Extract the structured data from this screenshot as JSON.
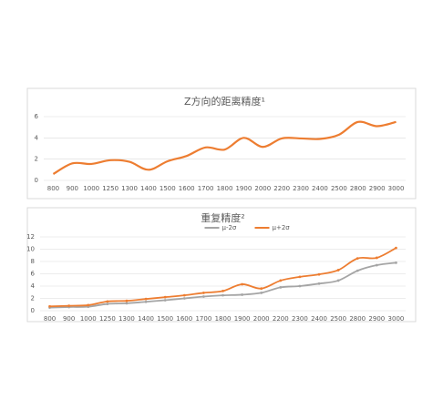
{
  "chart_data": [
    {
      "type": "line",
      "title": "Z方向的距离精度¹",
      "categories": [
        "800",
        "900",
        "1000",
        "1250",
        "1300",
        "1400",
        "1500",
        "1600",
        "1700",
        "1800",
        "1900",
        "2000",
        "2200",
        "2300",
        "2400",
        "2500",
        "2800",
        "2900",
        "3000"
      ],
      "series": [
        {
          "name": null,
          "color": "#ed7d31",
          "values": [
            0.6,
            1.6,
            1.55,
            1.9,
            1.75,
            1.0,
            1.8,
            2.3,
            3.1,
            2.9,
            4.0,
            3.15,
            3.95,
            3.95,
            3.9,
            4.3,
            5.5,
            5.1,
            5.5
          ]
        }
      ],
      "ylim": [
        0,
        6
      ],
      "yticks": [
        0,
        2,
        4,
        6
      ],
      "grid": true,
      "smooth": true,
      "markers": false
    },
    {
      "type": "line",
      "title": "重复精度²",
      "categories": [
        "800",
        "900",
        "1000",
        "1250",
        "1300",
        "1400",
        "1500",
        "1600",
        "1700",
        "1800",
        "1900",
        "2000",
        "2200",
        "2300",
        "2400",
        "2500",
        "2800",
        "2900",
        "3000"
      ],
      "series": [
        {
          "name": "μ-2σ",
          "color": "#a5a5a5",
          "values": [
            0.5,
            0.6,
            0.65,
            1.1,
            1.2,
            1.45,
            1.7,
            2.0,
            2.3,
            2.5,
            2.6,
            2.9,
            3.8,
            4.0,
            4.4,
            4.9,
            6.5,
            7.4,
            7.8
          ]
        },
        {
          "name": "μ+2σ",
          "color": "#ed7d31",
          "values": [
            0.7,
            0.8,
            0.9,
            1.5,
            1.6,
            1.9,
            2.2,
            2.5,
            2.9,
            3.2,
            4.3,
            3.6,
            4.9,
            5.5,
            5.9,
            6.6,
            8.5,
            8.6,
            10.2
          ]
        }
      ],
      "ylim": [
        0,
        12
      ],
      "yticks": [
        0,
        2,
        4,
        6,
        8,
        10,
        12
      ],
      "grid": true,
      "smooth": true,
      "markers": true,
      "legend": "top"
    }
  ]
}
